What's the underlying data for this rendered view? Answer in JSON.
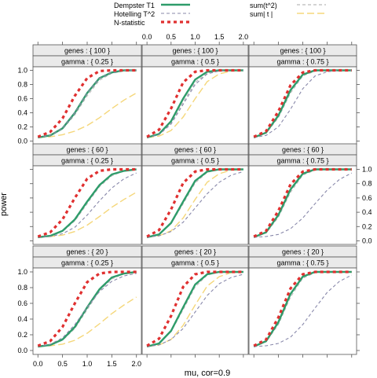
{
  "chart_data": {
    "type": "line",
    "layout": "lattice-3x3",
    "xlabel": "mu, cor=0.9",
    "ylabel": "power",
    "xlim": [
      -0.1,
      2.1
    ],
    "ylim": [
      -0.05,
      1.05
    ],
    "x_ticks": [
      "0.0",
      "0.5",
      "1.0",
      "1.5",
      "2.0"
    ],
    "y_ticks": [
      "0.0",
      "0.2",
      "0.4",
      "0.6",
      "0.8",
      "1.0"
    ],
    "legend": {
      "placement": "top",
      "entries": [
        {
          "label": "Dempster T1",
          "color": "#2e9c6a",
          "dash": "solid"
        },
        {
          "label": "Hotelling T^2",
          "color": "#8888aa",
          "dash": "dashed"
        },
        {
          "label": "N-statistic",
          "color": "#e03030",
          "dash": "heavy-dashed"
        },
        {
          "label": "sum(t^2)",
          "color": "#bbbbbb",
          "dash": "dashed"
        },
        {
          "label": "sum| t |",
          "color": "#f5d77a",
          "dash": "long-dashed"
        }
      ]
    },
    "x": [
      0.0,
      0.25,
      0.5,
      0.75,
      1.0,
      1.25,
      1.5,
      1.75,
      2.0
    ],
    "panels": [
      {
        "genes": "genes : { 100 }",
        "gamma": "gamma : { 0.25 }",
        "series": [
          {
            "name": "Dempster T1",
            "values": [
              0.05,
              0.08,
              0.18,
              0.4,
              0.68,
              0.89,
              0.97,
              1.0,
              1.0
            ]
          },
          {
            "name": "Hotelling T^2",
            "values": [
              0.05,
              0.08,
              0.18,
              0.4,
              0.68,
              0.89,
              0.97,
              1.0,
              1.0
            ]
          },
          {
            "name": "N-statistic",
            "values": [
              0.06,
              0.13,
              0.32,
              0.64,
              0.89,
              0.99,
              1.0,
              1.0,
              1.0
            ]
          },
          {
            "name": "sum(t^2)",
            "values": [
              0.05,
              0.08,
              0.17,
              0.37,
              0.64,
              0.86,
              0.96,
              0.99,
              1.0
            ]
          },
          {
            "name": "sum| t |",
            "values": [
              0.05,
              0.06,
              0.09,
              0.14,
              0.22,
              0.33,
              0.46,
              0.58,
              0.68
            ]
          }
        ]
      },
      {
        "genes": "genes : { 100 }",
        "gamma": "gamma : { 0.5 }",
        "series": [
          {
            "name": "Dempster T1",
            "values": [
              0.05,
              0.1,
              0.28,
              0.6,
              0.87,
              0.98,
              1.0,
              1.0,
              1.0
            ]
          },
          {
            "name": "Hotelling T^2",
            "values": [
              0.05,
              0.09,
              0.24,
              0.52,
              0.8,
              0.95,
              0.99,
              1.0,
              1.0
            ]
          },
          {
            "name": "N-statistic",
            "values": [
              0.06,
              0.16,
              0.46,
              0.83,
              0.98,
              1.0,
              1.0,
              1.0,
              1.0
            ]
          },
          {
            "name": "sum(t^2)",
            "values": [
              0.05,
              0.09,
              0.25,
              0.55,
              0.83,
              0.96,
              1.0,
              1.0,
              1.0
            ]
          },
          {
            "name": "sum| t |",
            "values": [
              0.05,
              0.07,
              0.15,
              0.34,
              0.6,
              0.84,
              0.95,
              0.99,
              1.0
            ]
          }
        ]
      },
      {
        "genes": "genes : { 100 }",
        "gamma": "gamma : { 0.75 }",
        "series": [
          {
            "name": "Dempster T1",
            "values": [
              0.05,
              0.12,
              0.36,
              0.72,
              0.94,
              1.0,
              1.0,
              1.0,
              1.0
            ]
          },
          {
            "name": "Hotelling T^2",
            "values": [
              0.05,
              0.08,
              0.2,
              0.45,
              0.74,
              0.92,
              0.98,
              1.0,
              1.0
            ]
          },
          {
            "name": "N-statistic",
            "values": [
              0.06,
              0.14,
              0.42,
              0.79,
              0.97,
              1.0,
              1.0,
              1.0,
              1.0
            ]
          },
          {
            "name": "sum(t^2)",
            "values": [
              0.05,
              0.11,
              0.33,
              0.68,
              0.92,
              0.99,
              1.0,
              1.0,
              1.0
            ]
          },
          {
            "name": "sum| t |",
            "values": [
              0.05,
              0.12,
              0.36,
              0.72,
              0.94,
              1.0,
              1.0,
              1.0,
              1.0
            ]
          }
        ]
      },
      {
        "genes": "genes : { 60 }",
        "gamma": "gamma : { 0.25 }",
        "series": [
          {
            "name": "Dempster T1",
            "values": [
              0.05,
              0.07,
              0.14,
              0.3,
              0.55,
              0.78,
              0.93,
              0.98,
              1.0
            ]
          },
          {
            "name": "Hotelling T^2",
            "values": [
              0.05,
              0.06,
              0.1,
              0.19,
              0.36,
              0.56,
              0.74,
              0.87,
              0.95
            ]
          },
          {
            "name": "N-statistic",
            "values": [
              0.06,
              0.12,
              0.3,
              0.6,
              0.87,
              0.98,
              1.0,
              1.0,
              1.0
            ]
          },
          {
            "name": "sum(t^2)",
            "values": [
              0.05,
              0.07,
              0.13,
              0.28,
              0.52,
              0.76,
              0.91,
              0.98,
              1.0
            ]
          },
          {
            "name": "sum| t |",
            "values": [
              0.05,
              0.06,
              0.08,
              0.13,
              0.22,
              0.34,
              0.47,
              0.58,
              0.68
            ]
          }
        ]
      },
      {
        "genes": "genes : { 60 }",
        "gamma": "gamma : { 0.5 }",
        "series": [
          {
            "name": "Dempster T1",
            "values": [
              0.05,
              0.09,
              0.25,
              0.55,
              0.84,
              0.97,
              1.0,
              1.0,
              1.0
            ]
          },
          {
            "name": "Hotelling T^2",
            "values": [
              0.05,
              0.07,
              0.13,
              0.26,
              0.46,
              0.66,
              0.82,
              0.92,
              0.97
            ]
          },
          {
            "name": "N-statistic",
            "values": [
              0.06,
              0.15,
              0.44,
              0.81,
              0.97,
              1.0,
              1.0,
              1.0,
              1.0
            ]
          },
          {
            "name": "sum(t^2)",
            "values": [
              0.05,
              0.09,
              0.24,
              0.52,
              0.81,
              0.96,
              1.0,
              1.0,
              1.0
            ]
          },
          {
            "name": "sum| t |",
            "values": [
              0.05,
              0.07,
              0.14,
              0.32,
              0.58,
              0.82,
              0.94,
              0.99,
              1.0
            ]
          }
        ]
      },
      {
        "genes": "genes : { 60 }",
        "gamma": "gamma : { 0.75 }",
        "series": [
          {
            "name": "Dempster T1",
            "values": [
              0.05,
              0.12,
              0.36,
              0.72,
              0.94,
              1.0,
              1.0,
              1.0,
              1.0
            ]
          },
          {
            "name": "Hotelling T^2",
            "values": [
              0.05,
              0.06,
              0.09,
              0.17,
              0.32,
              0.52,
              0.71,
              0.86,
              0.95
            ]
          },
          {
            "name": "N-statistic",
            "values": [
              0.06,
              0.14,
              0.42,
              0.79,
              0.97,
              1.0,
              1.0,
              1.0,
              1.0
            ]
          },
          {
            "name": "sum(t^2)",
            "values": [
              0.05,
              0.11,
              0.33,
              0.68,
              0.92,
              0.99,
              1.0,
              1.0,
              1.0
            ]
          },
          {
            "name": "sum| t |",
            "values": [
              0.05,
              0.12,
              0.36,
              0.72,
              0.94,
              1.0,
              1.0,
              1.0,
              1.0
            ]
          }
        ]
      },
      {
        "genes": "genes : { 20 }",
        "gamma": "gamma : { 0.25 }",
        "series": [
          {
            "name": "Dempster T1",
            "values": [
              0.05,
              0.07,
              0.14,
              0.3,
              0.55,
              0.78,
              0.93,
              0.98,
              1.0
            ]
          },
          {
            "name": "Hotelling T^2",
            "values": [
              0.05,
              0.08,
              0.16,
              0.33,
              0.55,
              0.75,
              0.88,
              0.95,
              0.98
            ]
          },
          {
            "name": "N-statistic",
            "values": [
              0.06,
              0.12,
              0.3,
              0.6,
              0.87,
              0.98,
              1.0,
              1.0,
              1.0
            ]
          },
          {
            "name": "sum(t^2)",
            "values": [
              0.05,
              0.07,
              0.13,
              0.28,
              0.52,
              0.76,
              0.91,
              0.98,
              1.0
            ]
          },
          {
            "name": "sum| t |",
            "values": [
              0.05,
              0.06,
              0.08,
              0.13,
              0.22,
              0.34,
              0.47,
              0.58,
              0.68
            ]
          }
        ]
      },
      {
        "genes": "genes : { 20 }",
        "gamma": "gamma : { 0.5 }",
        "series": [
          {
            "name": "Dempster T1",
            "values": [
              0.05,
              0.09,
              0.25,
              0.55,
              0.84,
              0.97,
              1.0,
              1.0,
              1.0
            ]
          },
          {
            "name": "Hotelling T^2",
            "values": [
              0.05,
              0.07,
              0.14,
              0.28,
              0.49,
              0.7,
              0.85,
              0.93,
              0.97
            ]
          },
          {
            "name": "N-statistic",
            "values": [
              0.06,
              0.15,
              0.44,
              0.81,
              0.97,
              1.0,
              1.0,
              1.0,
              1.0
            ]
          },
          {
            "name": "sum(t^2)",
            "values": [
              0.05,
              0.09,
              0.24,
              0.52,
              0.81,
              0.96,
              1.0,
              1.0,
              1.0
            ]
          },
          {
            "name": "sum| t |",
            "values": [
              0.05,
              0.07,
              0.14,
              0.32,
              0.58,
              0.82,
              0.94,
              0.99,
              1.0
            ]
          }
        ]
      },
      {
        "genes": "genes : { 20 }",
        "gamma": "gamma : { 0.75 }",
        "series": [
          {
            "name": "Dempster T1",
            "values": [
              0.05,
              0.12,
              0.36,
              0.72,
              0.94,
              1.0,
              1.0,
              1.0,
              1.0
            ]
          },
          {
            "name": "Hotelling T^2",
            "values": [
              0.05,
              0.06,
              0.09,
              0.17,
              0.33,
              0.54,
              0.74,
              0.88,
              0.96
            ]
          },
          {
            "name": "N-statistic",
            "values": [
              0.06,
              0.14,
              0.42,
              0.79,
              0.97,
              1.0,
              1.0,
              1.0,
              1.0
            ]
          },
          {
            "name": "sum(t^2)",
            "values": [
              0.05,
              0.11,
              0.33,
              0.68,
              0.92,
              0.99,
              1.0,
              1.0,
              1.0
            ]
          },
          {
            "name": "sum| t |",
            "values": [
              0.05,
              0.12,
              0.36,
              0.72,
              0.94,
              1.0,
              1.0,
              1.0,
              1.0
            ]
          }
        ]
      }
    ]
  }
}
